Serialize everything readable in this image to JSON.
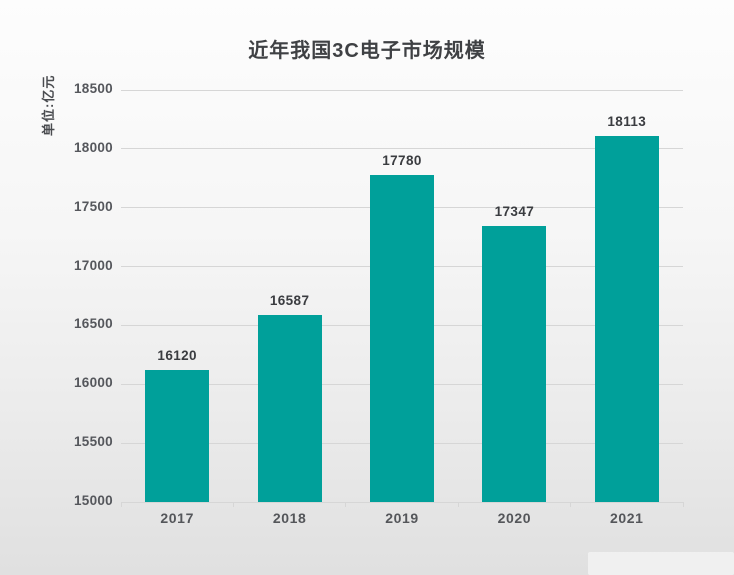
{
  "page": {
    "title": "近年我国3C电子市场规模",
    "y_axis_unit": "单位:亿元"
  },
  "colors": {
    "bar": "#00a09a",
    "gridline": "#d6d6d6",
    "title_text": "#3f4144",
    "tick_text": "#55575c",
    "value_text": "#3a3c40",
    "background_top": "#fdfdfd",
    "background_bottom": "#e0e0e0"
  },
  "chart_data": {
    "type": "bar",
    "title": "近年我国3C电子市场规模",
    "xlabel": "",
    "ylabel": "单位:亿元",
    "categories": [
      "2017",
      "2018",
      "2019",
      "2020",
      "2021"
    ],
    "values": [
      16120,
      16587,
      17780,
      17347,
      18113
    ],
    "ylim": [
      15000,
      18500
    ],
    "yticks": [
      15000,
      15500,
      16000,
      16500,
      17000,
      17500,
      18000,
      18500
    ],
    "grid": true,
    "legend_position": "none",
    "bar_value_labels_shown": true
  }
}
